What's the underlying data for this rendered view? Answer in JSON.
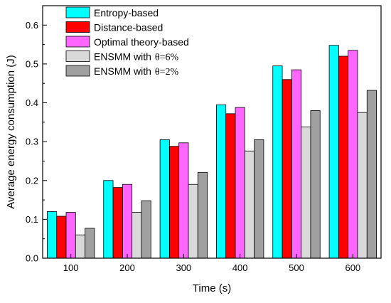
{
  "chart_data": {
    "type": "bar",
    "xlabel": "Time (s)",
    "ylabel": "Average energy consumption (J)",
    "ylim": [
      0.0,
      0.65
    ],
    "yticks": [
      "0.0",
      "0.1",
      "0.2",
      "0.3",
      "0.4",
      "0.5",
      "0.6"
    ],
    "categories": [
      "100",
      "200",
      "300",
      "400",
      "500",
      "600"
    ],
    "legend_position": "top-left",
    "series": [
      {
        "name": "Entropy-based",
        "color": "#00ffff",
        "values": [
          0.12,
          0.2,
          0.305,
          0.395,
          0.495,
          0.548
        ]
      },
      {
        "name": "Distance-based",
        "color": "#ff0000",
        "values": [
          0.108,
          0.182,
          0.288,
          0.372,
          0.46,
          0.52
        ]
      },
      {
        "name": "Optimal theory-based",
        "color": "#ff66ff",
        "values": [
          0.118,
          0.19,
          0.297,
          0.388,
          0.485,
          0.535
        ]
      },
      {
        "name": "ENSMM with",
        "name_suffix": "θ=6%",
        "color": "#d9d9d9",
        "values": [
          0.06,
          0.118,
          0.19,
          0.276,
          0.338,
          0.375
        ]
      },
      {
        "name": "ENSMM with",
        "name_suffix": "θ=2%",
        "color": "#a0a0a0",
        "values": [
          0.077,
          0.148,
          0.221,
          0.305,
          0.38,
          0.432
        ]
      }
    ]
  }
}
